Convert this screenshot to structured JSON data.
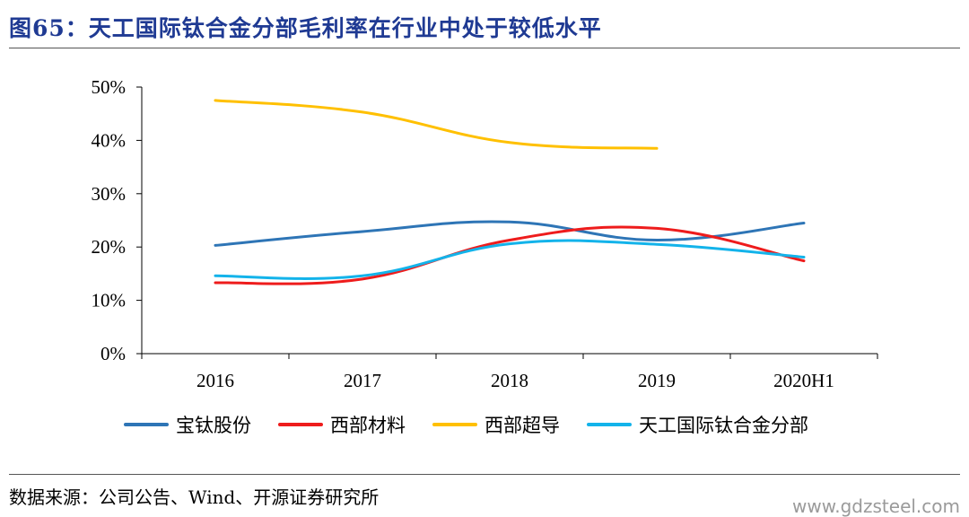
{
  "figure": {
    "title": "图65：天工国际钛合金分部毛利率在行业中处于较低水平",
    "source": "数据来源：公司公告、Wind、开源证券研究所",
    "watermark": "www.gdzsteel.com"
  },
  "chart_data": {
    "type": "line",
    "categories": [
      "2016",
      "2017",
      "2018",
      "2019",
      "2020H1"
    ],
    "ylim": [
      0,
      50
    ],
    "yticks": [
      "0%",
      "10%",
      "20%",
      "30%",
      "40%",
      "50%"
    ],
    "grid": false,
    "legend": "bottom",
    "series": [
      {
        "name": "宝钛股份",
        "color": "#2e75b6",
        "values": [
          20.3,
          22.9,
          24.7,
          21.3,
          24.5
        ]
      },
      {
        "name": "西部材料",
        "color": "#ee1c1c",
        "values": [
          13.3,
          14.0,
          21.3,
          23.5,
          17.4
        ]
      },
      {
        "name": "西部超导",
        "color": "#ffc000",
        "values": [
          47.5,
          45.3,
          39.6,
          38.5,
          null
        ]
      },
      {
        "name": "天工国际钛合金分部",
        "color": "#13b3ea",
        "values": [
          14.6,
          14.6,
          20.6,
          20.5,
          18.1
        ]
      }
    ]
  }
}
